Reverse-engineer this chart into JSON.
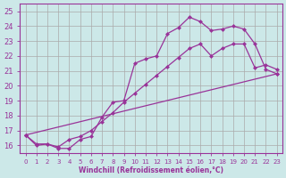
{
  "xlabel": "Windchill (Refroidissement éolien,°C)",
  "bg_color": "#cce8e8",
  "grid_color": "#aaaaaa",
  "line_color": "#993399",
  "xlim_min": -0.5,
  "xlim_max": 23.5,
  "ylim_min": 15.5,
  "ylim_max": 25.5,
  "yticks": [
    16,
    17,
    18,
    19,
    20,
    21,
    22,
    23,
    24,
    25
  ],
  "xticks": [
    0,
    1,
    2,
    3,
    4,
    5,
    6,
    7,
    8,
    9,
    10,
    11,
    12,
    13,
    14,
    15,
    16,
    17,
    18,
    19,
    20,
    21,
    22,
    23
  ],
  "line1_x": [
    0,
    1,
    2,
    3,
    4,
    5,
    6,
    7,
    8,
    9,
    10,
    11,
    12,
    13,
    14,
    15,
    16,
    17,
    18,
    19,
    20,
    21,
    22,
    23
  ],
  "line1_y": [
    16.7,
    16.0,
    16.1,
    15.8,
    15.8,
    16.4,
    16.6,
    17.9,
    18.9,
    19.0,
    21.5,
    21.8,
    22.0,
    23.5,
    23.9,
    24.6,
    24.3,
    23.7,
    23.8,
    24.0,
    23.8,
    22.8,
    21.1,
    20.8
  ],
  "line2_x": [
    0,
    1,
    2,
    3,
    4,
    5,
    6,
    7,
    8,
    9,
    10,
    11,
    12,
    13,
    14,
    15,
    16,
    17,
    18,
    19,
    20,
    21,
    22,
    23
  ],
  "line2_y": [
    16.7,
    16.1,
    16.1,
    15.9,
    16.4,
    16.6,
    17.0,
    17.6,
    18.2,
    18.9,
    19.5,
    20.1,
    20.7,
    21.3,
    21.9,
    22.5,
    22.8,
    22.0,
    22.5,
    22.8,
    22.8,
    21.2,
    21.4,
    21.1
  ],
  "line3_x": [
    0,
    23
  ],
  "line3_y": [
    16.7,
    20.8
  ]
}
